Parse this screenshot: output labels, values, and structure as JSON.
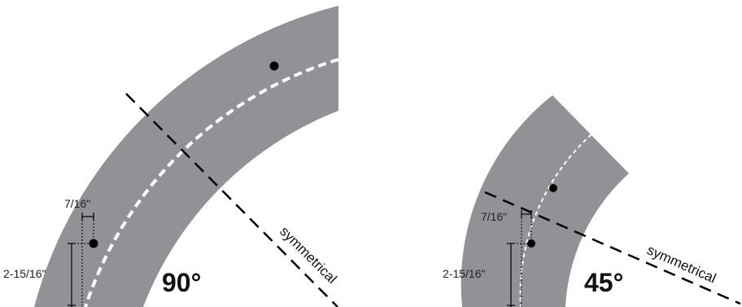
{
  "figures": [
    {
      "angle_label": "90°",
      "symmetry_label": "symmetrical",
      "dims": {
        "offset": "7/16\"",
        "height": "2-15/16\""
      }
    },
    {
      "angle_label": "45°",
      "symmetry_label": "symmetrical",
      "dims": {
        "offset": "7/16\"",
        "height": "2-15/16\""
      }
    }
  ],
  "colors": {
    "track": "#919295",
    "centerline": "#ffffff",
    "dot": "#000000",
    "line": "#000000"
  }
}
